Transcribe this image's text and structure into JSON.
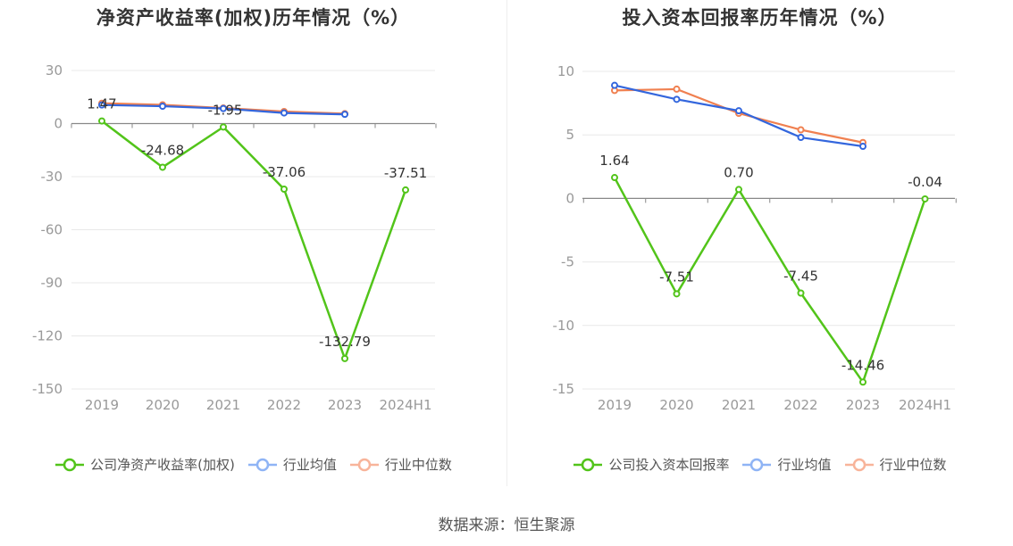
{
  "source": "数据来源：恒生聚源",
  "colors": {
    "company": "#52c41a",
    "industry_avg": "#3366dd",
    "industry_median": "#f08050",
    "legend_avg": "#8fb4f5",
    "legend_median": "#f8b49a",
    "grid": "#e8e8e8",
    "axis": "#888888"
  },
  "chart_data": [
    {
      "type": "line",
      "title": "净资产收益率(加权)历年情况（%）",
      "categories": [
        "2019",
        "2020",
        "2021",
        "2022",
        "2023",
        "2024H1"
      ],
      "ylim": [
        -150,
        30
      ],
      "yticks": [
        30,
        0,
        -30,
        -60,
        -90,
        -120,
        -150
      ],
      "grid": true,
      "legend_position": "bottom",
      "series": [
        {
          "name": "公司净资产收益率(加权)",
          "values": [
            1.47,
            -24.68,
            -1.95,
            -37.06,
            -132.79,
            -37.51
          ],
          "labels": [
            "1.47",
            "-24.68",
            "-1.95",
            "-37.06",
            "-132.79",
            "-37.51"
          ]
        },
        {
          "name": "行业均值",
          "values": [
            10.5,
            9.8,
            8.5,
            6.0,
            5.2,
            null
          ]
        },
        {
          "name": "行业中位数",
          "values": [
            11.5,
            10.6,
            8.8,
            6.8,
            5.6,
            null
          ]
        }
      ]
    },
    {
      "type": "line",
      "title": "投入资本回报率历年情况（%）",
      "categories": [
        "2019",
        "2020",
        "2021",
        "2022",
        "2023",
        "2024H1"
      ],
      "ylim": [
        -15,
        10
      ],
      "yticks": [
        10,
        5,
        0,
        -5,
        -10,
        -15
      ],
      "grid": true,
      "legend_position": "bottom",
      "series": [
        {
          "name": "公司投入资本回报率",
          "values": [
            1.64,
            -7.51,
            0.7,
            -7.45,
            -14.46,
            -0.04
          ],
          "labels": [
            "1.64",
            "-7.51",
            "0.70",
            "-7.45",
            "-14.46",
            "-0.04"
          ]
        },
        {
          "name": "行业均值",
          "values": [
            8.9,
            7.8,
            6.9,
            4.8,
            4.1,
            null
          ]
        },
        {
          "name": "行业中位数",
          "values": [
            8.5,
            8.6,
            6.7,
            5.4,
            4.4,
            null
          ]
        }
      ]
    }
  ]
}
